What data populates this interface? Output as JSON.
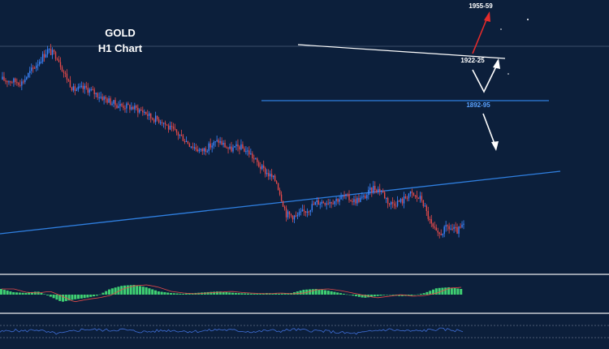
{
  "chart_data": {
    "type": "candlestick",
    "title_line1": "GOLD",
    "title_line2": "H1 Chart",
    "colors": {
      "background": "#0c1f3b",
      "bull": "#3d86ff",
      "bear": "#e64a4a",
      "support": "#2f7fe0",
      "trend": "#2f7fe0",
      "resistance": "#ffffff",
      "up_arrow": "#e52b2b",
      "down_arrow": "#ffffff",
      "macd_hist": "#3fcf72",
      "macd_signal": "#e64a4a",
      "rsi": "#3f6fd8"
    },
    "levels": [
      {
        "label": "1955-59",
        "role": "target-up",
        "color": "#ffffff"
      },
      {
        "label": "1922-25",
        "role": "pivot",
        "color": "#ffffff"
      },
      {
        "label": "1892-95",
        "role": "support",
        "color": "#5aa2ff"
      }
    ],
    "price_path": [
      {
        "i": 0,
        "p": 0.4
      },
      {
        "i": 12,
        "p": 0.38
      },
      {
        "i": 28,
        "p": 0.6
      },
      {
        "i": 34,
        "p": 0.56
      },
      {
        "i": 38,
        "p": 0.45
      },
      {
        "i": 44,
        "p": 0.33
      },
      {
        "i": 52,
        "p": 0.34
      },
      {
        "i": 60,
        "p": 0.29
      },
      {
        "i": 70,
        "p": 0.23
      },
      {
        "i": 80,
        "p": 0.21
      },
      {
        "i": 88,
        "p": 0.18
      },
      {
        "i": 92,
        "p": 0.14
      },
      {
        "i": 99,
        "p": 0.12
      },
      {
        "i": 103,
        "p": 0.07
      },
      {
        "i": 110,
        "p": 0.02
      },
      {
        "i": 116,
        "p": -0.04
      },
      {
        "i": 123,
        "p": -0.09
      },
      {
        "i": 128,
        "p": -0.06
      },
      {
        "i": 134,
        "p": -0.02
      },
      {
        "i": 141,
        "p": -0.08
      },
      {
        "i": 147,
        "p": -0.06
      },
      {
        "i": 153,
        "p": -0.1
      },
      {
        "i": 160,
        "p": -0.2
      },
      {
        "i": 170,
        "p": -0.3
      },
      {
        "i": 176,
        "p": -0.52
      },
      {
        "i": 182,
        "p": -0.54
      },
      {
        "i": 189,
        "p": -0.49
      },
      {
        "i": 195,
        "p": -0.44
      },
      {
        "i": 205,
        "p": -0.43
      },
      {
        "i": 212,
        "p": -0.4
      },
      {
        "i": 218,
        "p": -0.43
      },
      {
        "i": 224,
        "p": -0.41
      },
      {
        "i": 230,
        "p": -0.34
      },
      {
        "i": 235,
        "p": -0.36
      },
      {
        "i": 240,
        "p": -0.45
      },
      {
        "i": 248,
        "p": -0.43
      },
      {
        "i": 252,
        "p": -0.38
      },
      {
        "i": 260,
        "p": -0.42
      },
      {
        "i": 266,
        "p": -0.6
      },
      {
        "i": 270,
        "p": -0.67
      },
      {
        "i": 276,
        "p": -0.61
      },
      {
        "i": 282,
        "p": -0.64
      },
      {
        "i": 286,
        "p": -0.6
      }
    ],
    "macd_hist": [
      0.35,
      0.15,
      0.1,
      0.2,
      -0.1,
      -0.45,
      -0.3,
      -0.2,
      -0.05,
      0.35,
      0.55,
      0.6,
      0.45,
      0.2,
      0.1,
      0.05,
      0.1,
      0.15,
      0.2,
      0.12,
      0.08,
      0.05,
      0.1,
      0.05,
      0.1,
      0.3,
      0.35,
      0.25,
      0.1,
      -0.05,
      -0.2,
      -0.1,
      0.0,
      -0.1,
      -0.05,
      0.1,
      0.4,
      0.45,
      0.35
    ],
    "rsi": [
      0.45,
      0.55,
      0.5,
      0.6,
      0.4,
      0.35,
      0.5,
      0.62,
      0.58,
      0.55,
      0.6,
      0.5,
      0.45,
      0.52,
      0.55,
      0.5,
      0.48,
      0.53,
      0.6,
      0.55,
      0.5,
      0.45,
      0.55,
      0.5,
      0.6,
      0.55,
      0.52,
      0.48,
      0.4,
      0.35,
      0.42,
      0.55,
      0.6,
      0.52,
      0.5,
      0.55,
      0.62,
      0.58,
      0.5
    ]
  }
}
